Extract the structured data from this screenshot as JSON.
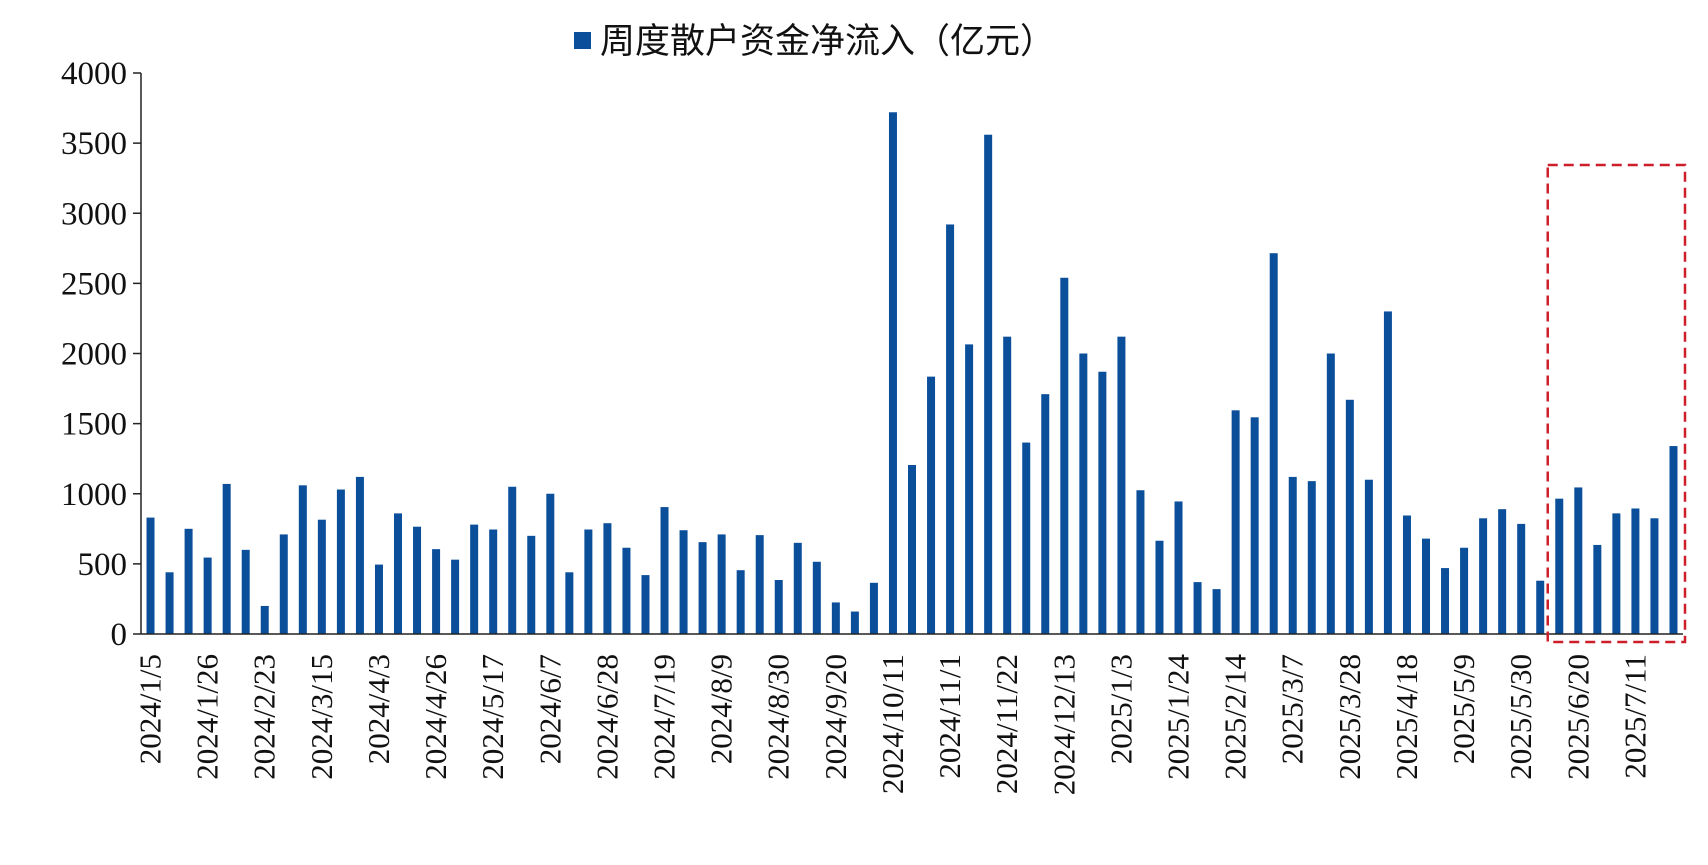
{
  "chart_data": {
    "type": "bar",
    "legend": {
      "label": "周度散户资金净流入（亿元）",
      "placement": "top-center"
    },
    "ylim": [
      0,
      4000
    ],
    "yticks": [
      0,
      500,
      1000,
      1500,
      2000,
      2500,
      3000,
      3500,
      4000
    ],
    "tick_labels": [
      "2024/1/5",
      "2024/1/26",
      "2024/2/23",
      "2024/3/15",
      "2024/4/3",
      "2024/4/26",
      "2024/5/17",
      "2024/6/7",
      "2024/6/28",
      "2024/7/19",
      "2024/8/9",
      "2024/8/30",
      "2024/9/20",
      "2024/10/11",
      "2024/11/1",
      "2024/11/22",
      "2024/12/13",
      "2025/1/3",
      "2025/1/24",
      "2025/2/14",
      "2025/3/7",
      "2025/3/28",
      "2025/4/18",
      "2025/5/9",
      "2025/5/30",
      "2025/6/20",
      "2025/7/11"
    ],
    "tick_every": 3,
    "series": [
      {
        "color": "#0b4f9b",
        "values": [
          830,
          440,
          750,
          545,
          1070,
          600,
          200,
          710,
          1060,
          815,
          1030,
          1120,
          495,
          860,
          765,
          605,
          530,
          780,
          745,
          1050,
          700,
          1000,
          440,
          745,
          790,
          615,
          420,
          905,
          740,
          655,
          710,
          455,
          705,
          385,
          650,
          515,
          225,
          160,
          365,
          3720,
          1205,
          1835,
          2920,
          2065,
          3560,
          2120,
          1365,
          1710,
          2540,
          2000,
          1870,
          2120,
          1025,
          665,
          945,
          370,
          320,
          1595,
          1545,
          2715,
          1120,
          1090,
          2000,
          1670,
          1100,
          2300,
          845,
          680,
          470,
          615,
          825,
          890,
          785,
          380,
          965,
          1045,
          635,
          860,
          895,
          825,
          1340
        ]
      }
    ],
    "highlight": {
      "from_index": 74,
      "to_index": 80,
      "color": "#cc1f2a",
      "style": "dashed"
    },
    "grid": false
  }
}
